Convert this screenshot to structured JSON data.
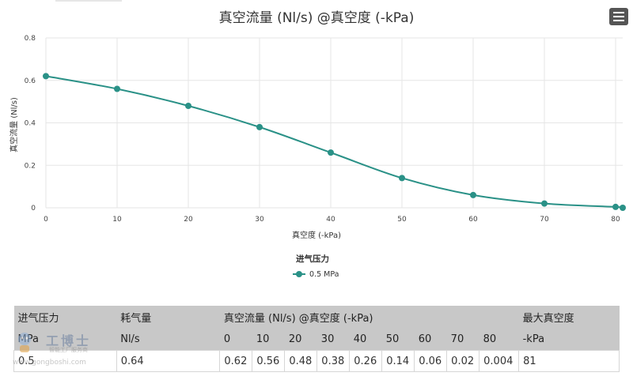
{
  "chart_data": {
    "type": "line",
    "title": "真空流量 (Nl/s) @真空度 (-kPa)",
    "xlabel": "真空度 (-kPa)",
    "ylabel": "真空流量 (Nl/s)",
    "xlim": [
      0,
      81
    ],
    "ylim": [
      0,
      0.8
    ],
    "x_ticks": [
      0,
      10,
      20,
      30,
      40,
      50,
      60,
      70,
      80
    ],
    "y_ticks": [
      0,
      0.2,
      0.4,
      0.6,
      0.8
    ],
    "y_tick_labels": [
      "0",
      "0.2",
      "0.4",
      "0.6",
      "0.8"
    ],
    "legend_title": "进气压力",
    "legend_position": "bottom",
    "grid": true,
    "series": [
      {
        "name": "0.5 MPa",
        "color": "#2a9187",
        "x": [
          0,
          10,
          20,
          30,
          40,
          50,
          60,
          70,
          80,
          81
        ],
        "y": [
          0.62,
          0.56,
          0.48,
          0.38,
          0.26,
          0.14,
          0.06,
          0.02,
          0.004,
          0
        ]
      }
    ]
  },
  "table": {
    "header_row1": [
      "进气压力",
      "耗气量",
      "真空流量 (Nl/s) @真空度 (-kPa)",
      "最大真空度"
    ],
    "header_row2": [
      "MPa",
      "Nl/s",
      "0",
      "10",
      "20",
      "30",
      "40",
      "50",
      "60",
      "70",
      "80",
      "-kPa"
    ],
    "rows": [
      [
        "0.5",
        "0.64",
        "0.62",
        "0.56",
        "0.48",
        "0.38",
        "0.26",
        "0.14",
        "0.06",
        "0.02",
        "0.004",
        "81"
      ]
    ]
  },
  "watermark": {
    "name": "工博士",
    "subtitle": "智能工厂服务商",
    "url": "www.gongboshi.com"
  },
  "menu_icon": "hamburger-menu-icon"
}
